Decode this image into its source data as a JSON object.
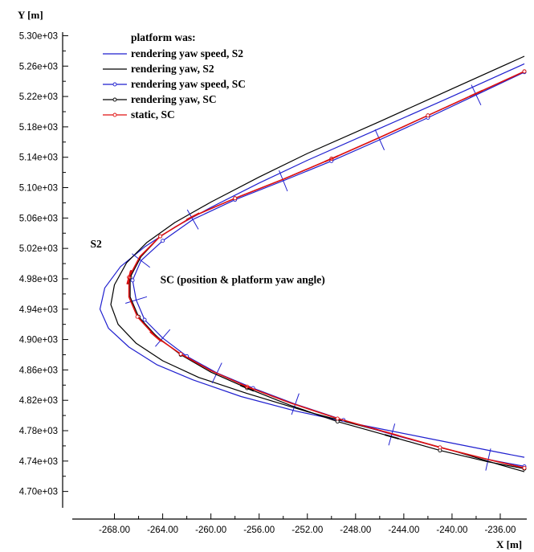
{
  "chart_data": {
    "type": "line",
    "xlabel": "X [m]",
    "ylabel": "Y [m]",
    "xlim": [
      -271.5,
      -234
    ],
    "ylim": [
      4670.0,
      5310.0
    ],
    "xticks": [
      -268,
      -264,
      -260,
      -256,
      -252,
      -248,
      -244,
      -240,
      -236
    ],
    "xtick_labels": [
      "-268.00",
      "-264.00",
      "-260.00",
      "-256.00",
      "-252.00",
      "-248.00",
      "-244.00",
      "-240.00",
      "-236.00"
    ],
    "yticks": [
      4700,
      4740,
      4780,
      4820,
      4860,
      4900,
      4940,
      4980,
      5020,
      5060,
      5100,
      5140,
      5180,
      5220,
      5260,
      5300
    ],
    "ytick_labels": [
      "4.70e+03",
      "4.74e+03",
      "4.78e+03",
      "4.82e+03",
      "4.86e+03",
      "4.90e+03",
      "4.94e+03",
      "4.98e+03",
      "5.02e+03",
      "5.06e+03",
      "5.10e+03",
      "5.14e+03",
      "5.18e+03",
      "5.22e+03",
      "5.26e+03",
      "5.30e+03"
    ],
    "grid": false,
    "legend": {
      "title": "platform was:",
      "placement": "top-left"
    },
    "series": [
      {
        "name": "rendering yaw speed, S2",
        "color": "#1f1fcf",
        "marker": "none",
        "x": [
          -234,
          -240,
          -246,
          -252,
          -256,
          -260,
          -263,
          -265.5,
          -267.5,
          -268.8,
          -269.2,
          -268.5,
          -266.8,
          -264.5,
          -261.5,
          -257.5,
          -253,
          -248,
          -242,
          -236,
          -234
        ],
        "y": [
          5263,
          5220,
          5178,
          5136,
          5106,
          5074,
          5048,
          5022,
          4996,
          4968,
          4940,
          4915,
          4890,
          4867,
          4847,
          4825,
          4806,
          4789,
          4770,
          4751,
          4745
        ]
      },
      {
        "name": "rendering yaw, S2",
        "color": "#000000",
        "marker": "none",
        "x": [
          -234,
          -240,
          -246,
          -252,
          -256,
          -260,
          -263,
          -265.3,
          -267,
          -268,
          -268.3,
          -267.7,
          -266.2,
          -264,
          -261,
          -257,
          -252,
          -246,
          -240,
          -236,
          -234
        ],
        "y": [
          5273,
          5230,
          5187,
          5145,
          5114,
          5081,
          5054,
          5028,
          5001,
          4972,
          4946,
          4920,
          4895,
          4872,
          4850,
          4829,
          4805,
          4780,
          4754,
          4735,
          4726
        ]
      },
      {
        "name": "rendering yaw speed, SC",
        "color": "#1f1fcf",
        "marker": "circle",
        "x": [
          -234,
          -238,
          -242,
          -246,
          -250,
          -254,
          -258,
          -261.5,
          -264,
          -265.8,
          -266.5,
          -266.2,
          -265.5,
          -264,
          -262,
          -259.5,
          -256.5,
          -253,
          -249,
          -245,
          -241,
          -237,
          -234
        ],
        "y": [
          5252,
          5222,
          5192,
          5163,
          5135,
          5109,
          5084,
          5058,
          5030,
          5004,
          4978,
          4952,
          4926,
          4902,
          4878,
          4856,
          4836,
          4815,
          4794,
          4775,
          4758,
          4742,
          4733
        ]
      },
      {
        "name": "rendering yaw, SC",
        "color": "#000000",
        "marker": "circle",
        "x": [
          -234,
          -238,
          -242,
          -246,
          -250,
          -254,
          -258,
          -261.5,
          -264.2,
          -265.8,
          -266.7,
          -266.7,
          -266,
          -264.5,
          -262.5,
          -260,
          -257,
          -253.5,
          -249.5,
          -245,
          -241,
          -237,
          -234
        ],
        "y": [
          5253,
          5224,
          5195,
          5166,
          5138,
          5111,
          5086,
          5062,
          5036,
          5009,
          4982,
          4956,
          4930,
          4904,
          4880,
          4857,
          4836,
          4814,
          4792,
          4772,
          4754,
          4739,
          4730
        ]
      },
      {
        "name": "static, SC",
        "color": "#e01010",
        "marker": "circle",
        "x": [
          -234,
          -238,
          -242,
          -246,
          -250,
          -254,
          -258,
          -261.5,
          -264.2,
          -265.9,
          -266.8,
          -266.8,
          -266.1,
          -264.6,
          -262.5,
          -260,
          -257,
          -253.5,
          -249.5,
          -245,
          -241,
          -237,
          -234
        ],
        "y": [
          5253,
          5224,
          5195,
          5166,
          5138,
          5111,
          5086,
          5062,
          5036,
          5009,
          4982,
          4956,
          4930,
          4904,
          4881,
          4859,
          4838,
          4817,
          4796,
          4776,
          4758,
          4742,
          4731
        ]
      }
    ],
    "annotations": [
      {
        "text": "S2",
        "x": -270,
        "y": 5021
      },
      {
        "text": "SC (position & platform yaw angle)",
        "x": -264.2,
        "y": 4974
      }
    ]
  }
}
